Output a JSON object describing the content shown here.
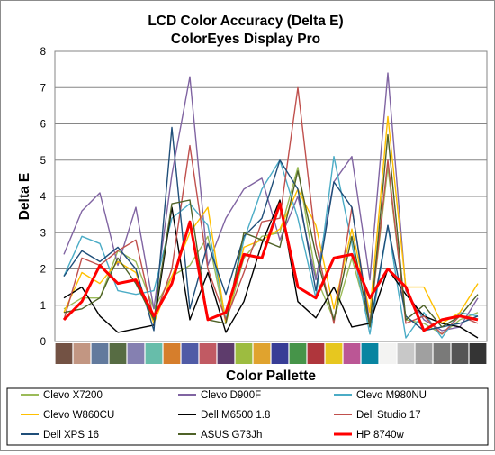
{
  "chart_data": {
    "type": "line",
    "title": "LCD Color Accuracy (Delta E)",
    "subtitle": "ColorEyes Display Pro",
    "xlabel": "Color Pallette",
    "ylabel": "Delta E",
    "ylim": [
      0,
      8
    ],
    "yticks": [
      0,
      1,
      2,
      3,
      4,
      5,
      6,
      7,
      8
    ],
    "grid": "horizontal",
    "legend_position": "bottom",
    "swatches": [
      "#735244",
      "#c29682",
      "#627a9d",
      "#576c43",
      "#8580b1",
      "#67bdaa",
      "#d67e2c",
      "#505ba6",
      "#c15a63",
      "#5e3c6c",
      "#9dbc40",
      "#e0a32e",
      "#383d96",
      "#469449",
      "#af363c",
      "#e7c71f",
      "#bb5695",
      "#0885a1",
      "#f3f3f2",
      "#c8c8c8",
      "#a0a0a0",
      "#7a7a79",
      "#555555",
      "#343434"
    ],
    "series": [
      {
        "name": "Clevo X7200",
        "color": "#9bbb59",
        "width": 1.4,
        "values": [
          0.9,
          1.2,
          1.2,
          2.5,
          2.2,
          0.9,
          1.8,
          2.1,
          2.9,
          0.5,
          2.3,
          2.9,
          3.0,
          4.8,
          1.8,
          0.6,
          2.3,
          0.5,
          4.8,
          0.6,
          0.5,
          0.2,
          0.6,
          0.8
        ]
      },
      {
        "name": "Clevo D900F",
        "color": "#8064a2",
        "width": 1.4,
        "values": [
          2.4,
          3.6,
          4.1,
          2.1,
          3.7,
          0.9,
          4.6,
          7.3,
          2.1,
          3.4,
          4.2,
          4.5,
          2.8,
          4.0,
          1.7,
          4.4,
          5.1,
          1.7,
          7.4,
          1.4,
          0.6,
          0.3,
          0.4,
          1.2
        ]
      },
      {
        "name": "Clevo M980NU",
        "color": "#4bacc6",
        "width": 1.4,
        "values": [
          1.8,
          2.9,
          2.7,
          1.4,
          1.3,
          1.4,
          3.4,
          3.8,
          3.2,
          0.6,
          2.8,
          4.2,
          5.0,
          3.4,
          1.2,
          5.1,
          2.7,
          0.2,
          3.2,
          0.1,
          0.8,
          0.1,
          0.8,
          0.7
        ]
      },
      {
        "name": "Clevo W860CU",
        "color": "#ffc000",
        "width": 1.4,
        "values": [
          0.8,
          1.9,
          1.6,
          2.2,
          1.9,
          0.5,
          1.8,
          3.0,
          3.7,
          0.5,
          2.6,
          2.8,
          3.1,
          4.2,
          3.2,
          0.9,
          3.1,
          0.8,
          6.2,
          1.5,
          1.5,
          0.5,
          0.8,
          1.6
        ]
      },
      {
        "name": "Dell M6500 1.8",
        "color": "#000000",
        "width": 1.4,
        "values": [
          1.2,
          1.5,
          0.7,
          0.25,
          0.35,
          0.45,
          3.7,
          0.6,
          1.9,
          0.25,
          1.1,
          2.7,
          3.9,
          1.1,
          0.65,
          1.5,
          0.4,
          0.5,
          2.0,
          1.3,
          0.7,
          0.5,
          0.4,
          0.1
        ]
      },
      {
        "name": "Dell Studio 17",
        "color": "#c0504d",
        "width": 1.4,
        "values": [
          0.6,
          2.3,
          2.1,
          2.5,
          2.8,
          0.6,
          2.0,
          5.4,
          2.0,
          0.6,
          1.9,
          3.3,
          3.4,
          7.0,
          2.7,
          0.5,
          3.7,
          0.5,
          5.0,
          0.5,
          0.7,
          0.2,
          0.7,
          0.5
        ]
      },
      {
        "name": "Dell XPS 16",
        "color": "#1f4e79",
        "width": 1.4,
        "values": [
          1.8,
          2.5,
          2.2,
          2.6,
          2.0,
          0.3,
          5.9,
          0.9,
          2.7,
          1.3,
          2.9,
          3.4,
          5.0,
          4.2,
          1.4,
          4.4,
          3.7,
          0.4,
          3.2,
          0.7,
          0.3,
          0.4,
          0.5,
          0.7
        ]
      },
      {
        "name": "ASUS G73Jh",
        "color": "#4f6228",
        "width": 1.4,
        "values": [
          0.8,
          0.9,
          1.2,
          2.3,
          1.6,
          0.6,
          3.8,
          3.9,
          0.6,
          0.5,
          3.0,
          2.8,
          2.6,
          4.7,
          2.4,
          0.6,
          2.9,
          0.4,
          5.7,
          0.6,
          1.0,
          0.4,
          0.7,
          1.3
        ]
      },
      {
        "name": "HP 8740w",
        "color": "#ff0000",
        "width": 3,
        "values": [
          0.6,
          1.1,
          2.1,
          1.6,
          1.7,
          0.7,
          1.6,
          3.3,
          0.6,
          0.8,
          2.4,
          2.3,
          3.8,
          1.5,
          1.2,
          2.3,
          2.4,
          1.2,
          2.0,
          1.5,
          0.3,
          0.6,
          0.7,
          0.6
        ]
      }
    ]
  }
}
